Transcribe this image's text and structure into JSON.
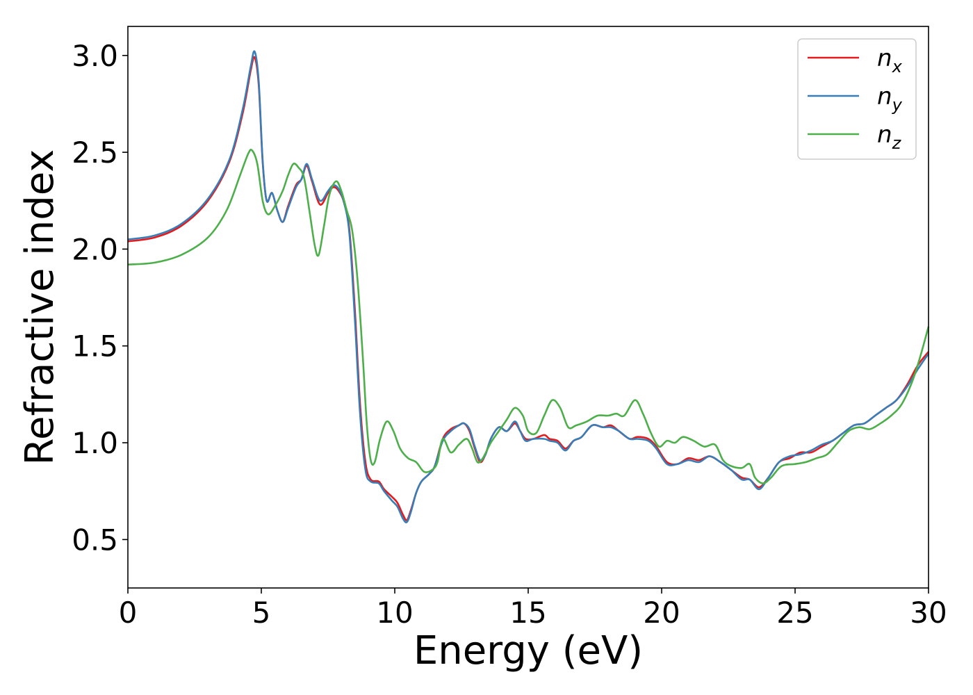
{
  "chart_data": {
    "type": "line",
    "xlabel": "Energy (eV)",
    "ylabel": "Refractive index",
    "xlim": [
      0,
      30
    ],
    "ylim": [
      0.25,
      3.15
    ],
    "xticks": [
      "0",
      "5",
      "10",
      "15",
      "20",
      "25",
      "30"
    ],
    "yticks": [
      "0.5",
      "1.0",
      "1.5",
      "2.0",
      "2.5",
      "3.0"
    ],
    "grid": false,
    "legend": "top-right",
    "series": [
      {
        "name": "n_x",
        "legend_base": "n",
        "legend_sub": "x",
        "color": "#e41a1c",
        "points": [
          [
            0,
            2.04
          ],
          [
            1,
            2.06
          ],
          [
            2,
            2.12
          ],
          [
            3,
            2.25
          ],
          [
            3.8,
            2.45
          ],
          [
            4.3,
            2.7
          ],
          [
            4.6,
            2.92
          ],
          [
            4.75,
            2.99
          ],
          [
            4.9,
            2.85
          ],
          [
            5.05,
            2.45
          ],
          [
            5.2,
            2.25
          ],
          [
            5.4,
            2.29
          ],
          [
            5.6,
            2.2
          ],
          [
            5.8,
            2.14
          ],
          [
            6.0,
            2.22
          ],
          [
            6.3,
            2.33
          ],
          [
            6.5,
            2.36
          ],
          [
            6.7,
            2.43
          ],
          [
            6.9,
            2.35
          ],
          [
            7.2,
            2.23
          ],
          [
            7.5,
            2.29
          ],
          [
            7.7,
            2.32
          ],
          [
            7.9,
            2.3
          ],
          [
            8.1,
            2.24
          ],
          [
            8.3,
            2.1
          ],
          [
            8.5,
            1.7
          ],
          [
            8.7,
            1.2
          ],
          [
            8.9,
            0.9
          ],
          [
            9.1,
            0.81
          ],
          [
            9.4,
            0.8
          ],
          [
            9.6,
            0.76
          ],
          [
            9.9,
            0.72
          ],
          [
            10.1,
            0.69
          ],
          [
            10.3,
            0.63
          ],
          [
            10.45,
            0.6
          ],
          [
            10.6,
            0.65
          ],
          [
            10.8,
            0.74
          ],
          [
            11.0,
            0.8
          ],
          [
            11.3,
            0.84
          ],
          [
            11.5,
            0.88
          ],
          [
            11.8,
            1.02
          ],
          [
            12.1,
            1.07
          ],
          [
            12.4,
            1.09
          ],
          [
            12.6,
            1.1
          ],
          [
            12.8,
            1.06
          ],
          [
            13.0,
            0.97
          ],
          [
            13.2,
            0.9
          ],
          [
            13.4,
            0.94
          ],
          [
            13.6,
            1.02
          ],
          [
            13.9,
            1.08
          ],
          [
            14.2,
            1.06
          ],
          [
            14.5,
            1.1
          ],
          [
            14.7,
            1.06
          ],
          [
            14.9,
            1.02
          ],
          [
            15.2,
            1.02
          ],
          [
            15.6,
            1.04
          ],
          [
            15.8,
            1.02
          ],
          [
            16.1,
            1.01
          ],
          [
            16.4,
            0.97
          ],
          [
            16.7,
            1.01
          ],
          [
            17.0,
            1.03
          ],
          [
            17.4,
            1.09
          ],
          [
            17.8,
            1.08
          ],
          [
            18.1,
            1.09
          ],
          [
            18.4,
            1.06
          ],
          [
            18.8,
            1.02
          ],
          [
            19.1,
            1.03
          ],
          [
            19.5,
            1.02
          ],
          [
            19.8,
            0.98
          ],
          [
            20.2,
            0.9
          ],
          [
            20.6,
            0.89
          ],
          [
            21.0,
            0.92
          ],
          [
            21.4,
            0.91
          ],
          [
            21.8,
            0.93
          ],
          [
            22.2,
            0.9
          ],
          [
            22.6,
            0.86
          ],
          [
            23.0,
            0.82
          ],
          [
            23.3,
            0.81
          ],
          [
            23.65,
            0.77
          ],
          [
            24.0,
            0.82
          ],
          [
            24.4,
            0.9
          ],
          [
            24.8,
            0.92
          ],
          [
            25.2,
            0.95
          ],
          [
            25.6,
            0.95
          ],
          [
            26.0,
            0.98
          ],
          [
            26.4,
            1.01
          ],
          [
            26.8,
            1.05
          ],
          [
            27.2,
            1.09
          ],
          [
            27.6,
            1.1
          ],
          [
            28.0,
            1.14
          ],
          [
            28.4,
            1.18
          ],
          [
            28.8,
            1.22
          ],
          [
            29.2,
            1.3
          ],
          [
            29.6,
            1.4
          ],
          [
            30.0,
            1.47
          ]
        ]
      },
      {
        "name": "n_y",
        "legend_base": "n",
        "legend_sub": "y",
        "color": "#377eb8",
        "points": [
          [
            0,
            2.05
          ],
          [
            1,
            2.07
          ],
          [
            2,
            2.13
          ],
          [
            3,
            2.26
          ],
          [
            3.8,
            2.46
          ],
          [
            4.3,
            2.72
          ],
          [
            4.6,
            2.94
          ],
          [
            4.75,
            3.02
          ],
          [
            4.9,
            2.87
          ],
          [
            5.05,
            2.46
          ],
          [
            5.2,
            2.25
          ],
          [
            5.4,
            2.29
          ],
          [
            5.6,
            2.2
          ],
          [
            5.8,
            2.14
          ],
          [
            6.0,
            2.21
          ],
          [
            6.3,
            2.32
          ],
          [
            6.5,
            2.36
          ],
          [
            6.7,
            2.44
          ],
          [
            6.9,
            2.36
          ],
          [
            7.2,
            2.25
          ],
          [
            7.5,
            2.3
          ],
          [
            7.7,
            2.33
          ],
          [
            7.9,
            2.31
          ],
          [
            8.1,
            2.24
          ],
          [
            8.3,
            2.08
          ],
          [
            8.5,
            1.65
          ],
          [
            8.7,
            1.15
          ],
          [
            8.9,
            0.86
          ],
          [
            9.1,
            0.8
          ],
          [
            9.4,
            0.79
          ],
          [
            9.6,
            0.75
          ],
          [
            9.9,
            0.7
          ],
          [
            10.1,
            0.67
          ],
          [
            10.3,
            0.61
          ],
          [
            10.45,
            0.59
          ],
          [
            10.6,
            0.64
          ],
          [
            10.8,
            0.74
          ],
          [
            11.0,
            0.8
          ],
          [
            11.3,
            0.84
          ],
          [
            11.5,
            0.88
          ],
          [
            11.8,
            1.01
          ],
          [
            12.1,
            1.06
          ],
          [
            12.4,
            1.09
          ],
          [
            12.6,
            1.1
          ],
          [
            12.8,
            1.07
          ],
          [
            13.0,
            0.98
          ],
          [
            13.2,
            0.91
          ],
          [
            13.4,
            0.94
          ],
          [
            13.6,
            1.02
          ],
          [
            13.9,
            1.08
          ],
          [
            14.2,
            1.06
          ],
          [
            14.5,
            1.11
          ],
          [
            14.7,
            1.06
          ],
          [
            14.9,
            1.01
          ],
          [
            15.2,
            1.02
          ],
          [
            15.6,
            1.02
          ],
          [
            15.8,
            1.01
          ],
          [
            16.1,
            1.0
          ],
          [
            16.4,
            0.96
          ],
          [
            16.7,
            1.01
          ],
          [
            17.0,
            1.03
          ],
          [
            17.4,
            1.09
          ],
          [
            17.8,
            1.08
          ],
          [
            18.1,
            1.08
          ],
          [
            18.4,
            1.06
          ],
          [
            18.8,
            1.02
          ],
          [
            19.1,
            1.02
          ],
          [
            19.5,
            1.01
          ],
          [
            19.8,
            0.97
          ],
          [
            20.2,
            0.89
          ],
          [
            20.6,
            0.89
          ],
          [
            21.0,
            0.91
          ],
          [
            21.4,
            0.9
          ],
          [
            21.8,
            0.93
          ],
          [
            22.2,
            0.9
          ],
          [
            22.6,
            0.86
          ],
          [
            23.0,
            0.81
          ],
          [
            23.3,
            0.81
          ],
          [
            23.65,
            0.76
          ],
          [
            24.0,
            0.82
          ],
          [
            24.4,
            0.9
          ],
          [
            24.8,
            0.93
          ],
          [
            25.2,
            0.94
          ],
          [
            25.6,
            0.96
          ],
          [
            26.0,
            0.99
          ],
          [
            26.4,
            1.01
          ],
          [
            26.8,
            1.05
          ],
          [
            27.2,
            1.09
          ],
          [
            27.6,
            1.1
          ],
          [
            28.0,
            1.14
          ],
          [
            28.4,
            1.18
          ],
          [
            28.8,
            1.22
          ],
          [
            29.2,
            1.29
          ],
          [
            29.6,
            1.38
          ],
          [
            30.0,
            1.46
          ]
        ]
      },
      {
        "name": "n_z",
        "legend_base": "n",
        "legend_sub": "z",
        "color": "#4daf4a",
        "points": [
          [
            0,
            1.92
          ],
          [
            1,
            1.93
          ],
          [
            2,
            1.97
          ],
          [
            3,
            2.06
          ],
          [
            3.7,
            2.2
          ],
          [
            4.2,
            2.38
          ],
          [
            4.5,
            2.49
          ],
          [
            4.65,
            2.51
          ],
          [
            4.85,
            2.44
          ],
          [
            5.05,
            2.25
          ],
          [
            5.25,
            2.18
          ],
          [
            5.5,
            2.22
          ],
          [
            5.8,
            2.3
          ],
          [
            6.0,
            2.38
          ],
          [
            6.2,
            2.44
          ],
          [
            6.4,
            2.42
          ],
          [
            6.6,
            2.37
          ],
          [
            6.8,
            2.2
          ],
          [
            7.0,
            2.02
          ],
          [
            7.15,
            1.97
          ],
          [
            7.35,
            2.12
          ],
          [
            7.55,
            2.28
          ],
          [
            7.8,
            2.35
          ],
          [
            8.0,
            2.3
          ],
          [
            8.2,
            2.2
          ],
          [
            8.4,
            2.1
          ],
          [
            8.6,
            1.85
          ],
          [
            8.8,
            1.45
          ],
          [
            8.95,
            1.1
          ],
          [
            9.1,
            0.91
          ],
          [
            9.25,
            0.9
          ],
          [
            9.45,
            1.02
          ],
          [
            9.7,
            1.11
          ],
          [
            9.95,
            1.06
          ],
          [
            10.2,
            0.97
          ],
          [
            10.5,
            0.92
          ],
          [
            10.8,
            0.9
          ],
          [
            11.1,
            0.85
          ],
          [
            11.4,
            0.86
          ],
          [
            11.6,
            0.9
          ],
          [
            11.8,
            1.02
          ],
          [
            12.1,
            0.95
          ],
          [
            12.4,
            0.99
          ],
          [
            12.7,
            1.02
          ],
          [
            12.9,
            0.97
          ],
          [
            13.1,
            0.9
          ],
          [
            13.3,
            0.92
          ],
          [
            13.6,
            1.0
          ],
          [
            13.9,
            1.06
          ],
          [
            14.2,
            1.12
          ],
          [
            14.5,
            1.18
          ],
          [
            14.8,
            1.14
          ],
          [
            15.0,
            1.06
          ],
          [
            15.3,
            1.05
          ],
          [
            15.6,
            1.14
          ],
          [
            15.9,
            1.22
          ],
          [
            16.2,
            1.18
          ],
          [
            16.5,
            1.08
          ],
          [
            16.8,
            1.09
          ],
          [
            17.2,
            1.11
          ],
          [
            17.6,
            1.14
          ],
          [
            18.0,
            1.14
          ],
          [
            18.3,
            1.15
          ],
          [
            18.6,
            1.14
          ],
          [
            19.0,
            1.22
          ],
          [
            19.3,
            1.15
          ],
          [
            19.6,
            1.05
          ],
          [
            19.9,
            0.98
          ],
          [
            20.2,
            1.01
          ],
          [
            20.5,
            1.0
          ],
          [
            20.8,
            1.03
          ],
          [
            21.2,
            1.01
          ],
          [
            21.6,
            0.98
          ],
          [
            22.0,
            0.99
          ],
          [
            22.3,
            0.91
          ],
          [
            22.6,
            0.88
          ],
          [
            23.0,
            0.87
          ],
          [
            23.3,
            0.89
          ],
          [
            23.5,
            0.82
          ],
          [
            23.8,
            0.79
          ],
          [
            24.1,
            0.82
          ],
          [
            24.5,
            0.88
          ],
          [
            25.0,
            0.89
          ],
          [
            25.4,
            0.9
          ],
          [
            25.8,
            0.92
          ],
          [
            26.2,
            0.94
          ],
          [
            26.6,
            1.0
          ],
          [
            27.0,
            1.06
          ],
          [
            27.4,
            1.08
          ],
          [
            27.8,
            1.07
          ],
          [
            28.2,
            1.1
          ],
          [
            28.6,
            1.14
          ],
          [
            29.0,
            1.2
          ],
          [
            29.4,
            1.32
          ],
          [
            29.7,
            1.45
          ],
          [
            30.0,
            1.6
          ]
        ]
      }
    ]
  }
}
